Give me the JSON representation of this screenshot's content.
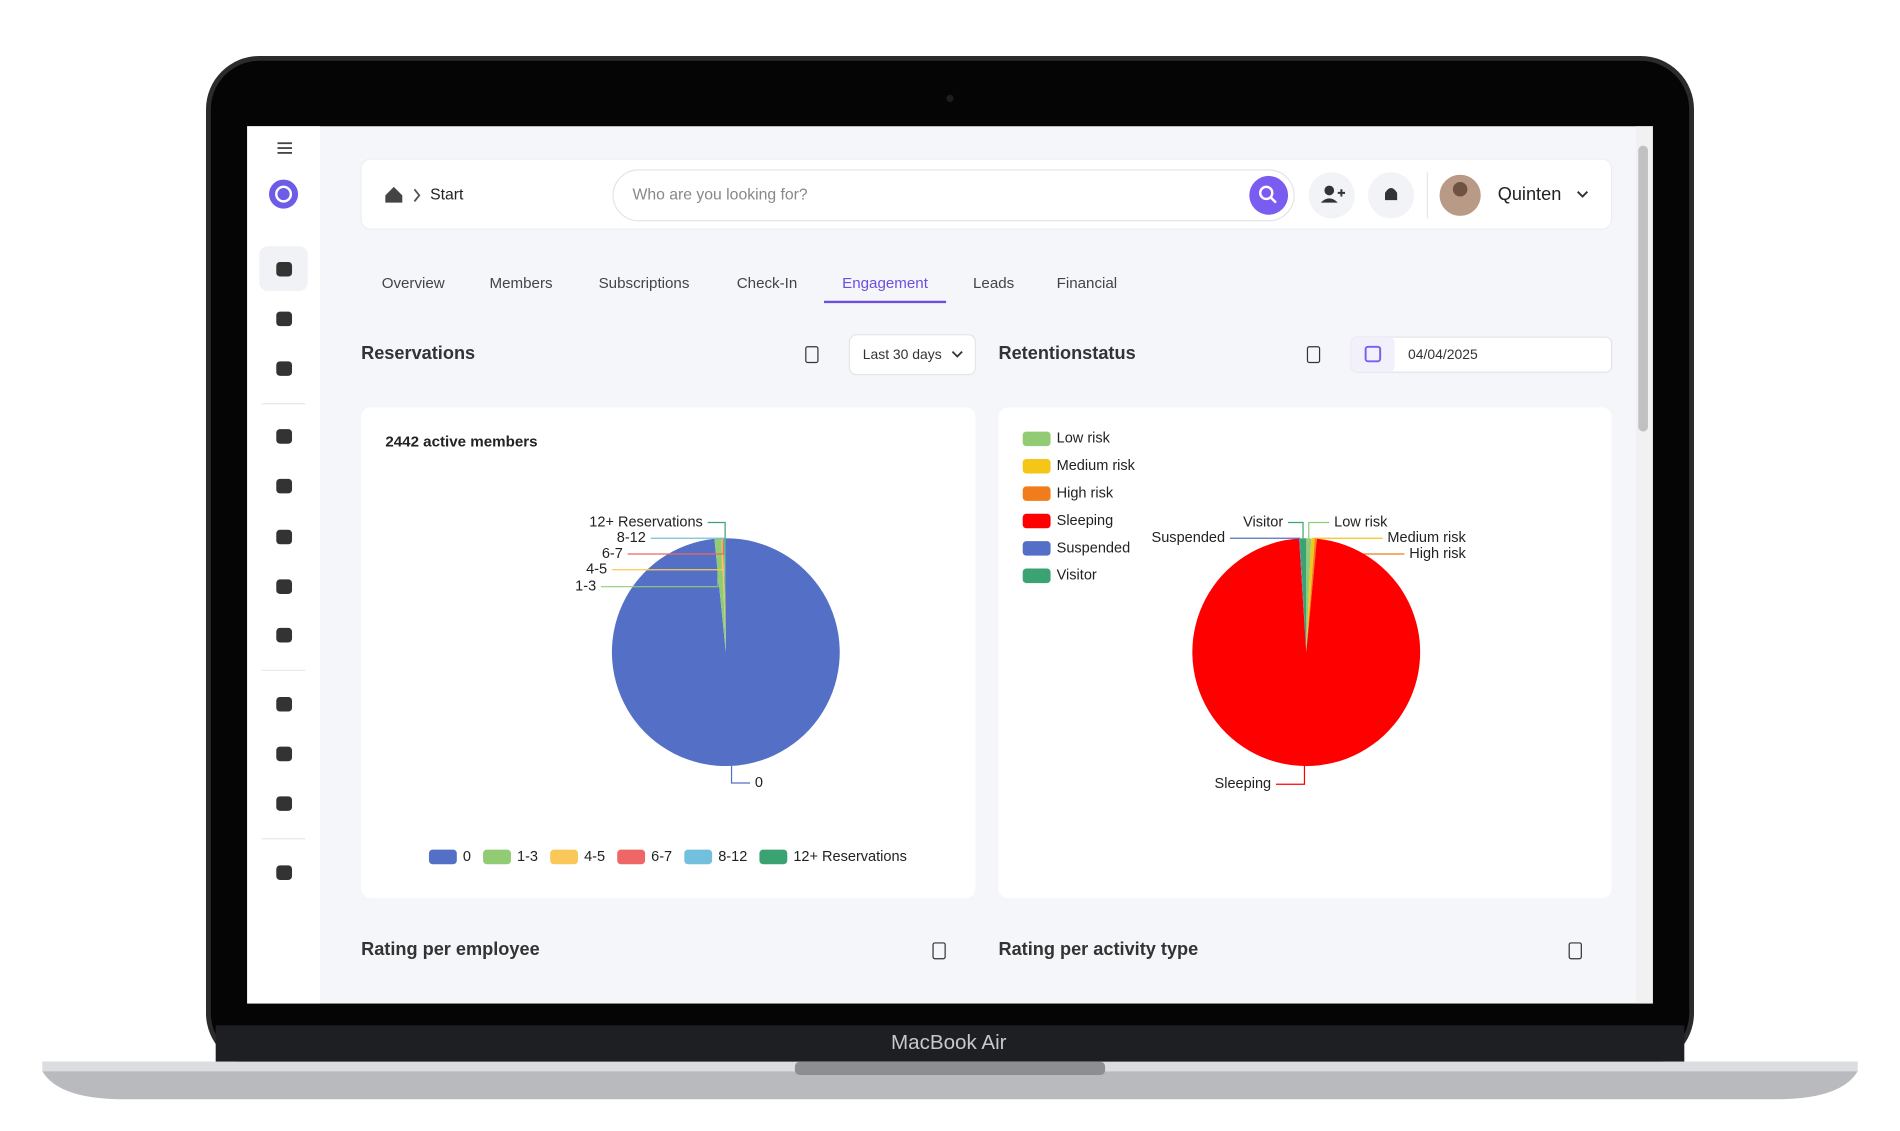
{
  "device_label": "MacBook Air",
  "header": {
    "breadcrumb": "Start",
    "search_placeholder": "Who are you looking for?",
    "user": "Quinten"
  },
  "tabs": [
    "Overview",
    "Members",
    "Subscriptions",
    "Check-In",
    "Engagement",
    "Leads",
    "Financial"
  ],
  "filters": {
    "period": "Last 30 days",
    "date": "04/04/2025"
  },
  "sections": {
    "rating_employee": "Rating per employee",
    "rating_activity": "Rating per activity type"
  },
  "chart_data": [
    {
      "type": "pie",
      "title": "Reservations",
      "subtitle": "2442 active members",
      "categories": [
        "0",
        "1-3",
        "4-5",
        "6-7",
        "8-12",
        "12+ Reservations"
      ],
      "values": [
        98.4,
        1.0,
        0.2,
        0.1,
        0.1,
        0.2
      ],
      "colors": [
        "#5470c6",
        "#91cc75",
        "#fac858",
        "#ee6666",
        "#73c0de",
        "#3ba272"
      ],
      "legend": "bottom"
    },
    {
      "type": "pie",
      "title": "Retentionstatus",
      "categories": [
        "Low risk",
        "Medium risk",
        "High risk",
        "Sleeping",
        "Suspended",
        "Visitor"
      ],
      "values": [
        0.7,
        0.5,
        0.3,
        97.5,
        0.1,
        0.9
      ],
      "colors": [
        "#91cc75",
        "#f5c518",
        "#f07c1c",
        "#ff0000",
        "#5470c6",
        "#3ba272"
      ],
      "legend": "top-left"
    }
  ]
}
